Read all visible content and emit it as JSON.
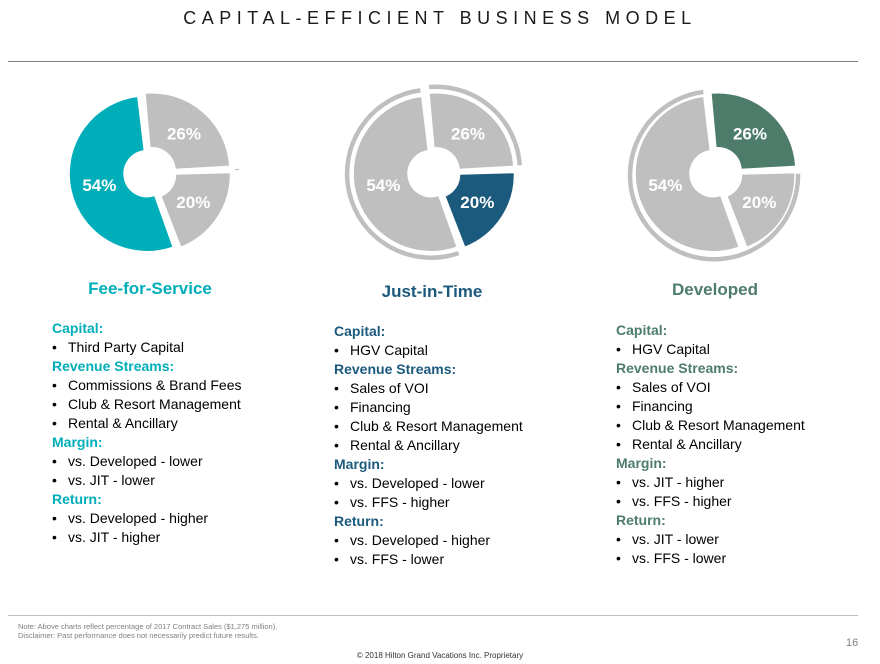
{
  "title": "CAPITAL-EFFICIENT BUSINESS MODEL",
  "colors": {
    "teal": "#00aeb9",
    "blue": "#1c5a7d",
    "green": "#4e7c6a",
    "gray": "#bfbfbf"
  },
  "chart_data": [
    {
      "type": "pie",
      "title": "Fee-for-Service",
      "categories": [
        "Fee-for-Service",
        "Just-in-Time",
        "Developed"
      ],
      "values": [
        54,
        20,
        26
      ],
      "labels": [
        "54%",
        "20%",
        "26%"
      ],
      "highlight": 0
    },
    {
      "type": "pie",
      "title": "Just-in-Time",
      "categories": [
        "Fee-for-Service",
        "Just-in-Time",
        "Developed"
      ],
      "values": [
        54,
        20,
        26
      ],
      "labels": [
        "54%",
        "20%",
        "26%"
      ],
      "highlight": 1
    },
    {
      "type": "pie",
      "title": "Developed",
      "categories": [
        "Fee-for-Service",
        "Just-in-Time",
        "Developed"
      ],
      "values": [
        54,
        20,
        26
      ],
      "labels": [
        "54%",
        "20%",
        "26%"
      ],
      "highlight": 2
    }
  ],
  "columns": [
    {
      "title": "Fee-for-Service",
      "color": "#00aeb9",
      "sections": [
        {
          "heading": "Capital:",
          "items": [
            "Third Party Capital"
          ]
        },
        {
          "heading": "Revenue Streams:",
          "items": [
            "Commissions & Brand Fees",
            "Club & Resort Management",
            "Rental & Ancillary"
          ]
        },
        {
          "heading": "Margin:",
          "items": [
            "vs. Developed - lower",
            "vs. JIT - lower"
          ]
        },
        {
          "heading": "Return:",
          "items": [
            "vs. Developed - higher",
            "vs. JIT - higher"
          ]
        }
      ]
    },
    {
      "title": "Just-in-Time",
      "color": "#1c5a7d",
      "sections": [
        {
          "heading": "Capital:",
          "items": [
            "HGV Capital"
          ]
        },
        {
          "heading": "Revenue Streams:",
          "items": [
            "Sales of VOI",
            "Financing",
            "Club & Resort Management",
            "Rental & Ancillary"
          ]
        },
        {
          "heading": "Margin:",
          "items": [
            "vs. Developed - lower",
            "vs. FFS - higher"
          ]
        },
        {
          "heading": "Return:",
          "items": [
            "vs. Developed - higher",
            "vs. FFS - lower"
          ]
        }
      ]
    },
    {
      "title": "Developed",
      "color": "#4e7c6a",
      "sections": [
        {
          "heading": "Capital:",
          "items": [
            "HGV Capital"
          ]
        },
        {
          "heading": "Revenue Streams:",
          "items": [
            "Sales of VOI",
            "Financing",
            "Club & Resort Management",
            "Rental & Ancillary"
          ]
        },
        {
          "heading": "Margin:",
          "items": [
            "vs. JIT - higher",
            "vs. FFS - higher"
          ]
        },
        {
          "heading": "Return:",
          "items": [
            "vs. JIT - lower",
            "vs. FFS - lower"
          ]
        }
      ]
    }
  ],
  "footer": {
    "note": "Note: Above charts reflect percentage of 2017 Contract Sales ($1,275 million).",
    "disclaimer": "Disclaimer: Past performance does not necessarily predict future results.",
    "page_number": "16",
    "copyright": "© 2018 Hilton Grand Vacations Inc. Proprietary"
  }
}
